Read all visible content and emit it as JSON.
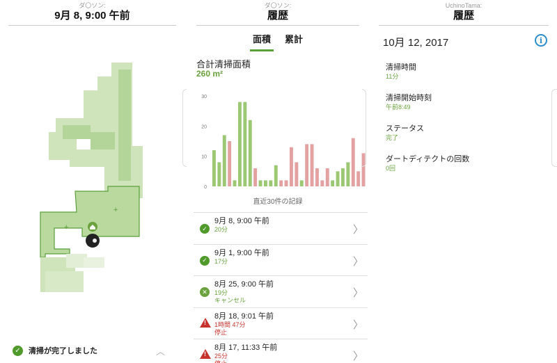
{
  "panel1": {
    "header_sub": "ダ〇ソン:",
    "header_title": "9月 8, 9:00 午前",
    "status_text": "清掃が完了しました"
  },
  "panel2": {
    "header_sub": "ダ〇ソン:",
    "header_title": "履歴",
    "tabs": [
      "面積",
      "累計"
    ],
    "total_label": "合計清掃面積",
    "total_value": "260 m²",
    "chart_caption": "直近30件の記録",
    "list": [
      {
        "title": "9月 8, 9:00 午前",
        "duration": "20分",
        "status": "",
        "icon": "check"
      },
      {
        "title": "9月 1, 9:00 午前",
        "duration": "17分",
        "status": "",
        "icon": "check"
      },
      {
        "title": "8月 25, 9:00 午前",
        "duration": "19分",
        "status": "キャンセル",
        "icon": "cancel"
      },
      {
        "title": "8月 18, 9:01 午前",
        "duration": "1時間 47分",
        "status": "停止",
        "icon": "warning"
      },
      {
        "title": "8月 17, 11:33 午前",
        "duration": "25分",
        "status": "停止",
        "icon": "warning"
      }
    ]
  },
  "panel3": {
    "header_sub": "UchinoTama:",
    "header_title": "履歴",
    "date": "10月 12, 2017",
    "details": [
      {
        "label": "清掃時間",
        "value": "11分"
      },
      {
        "label": "清掃開始時刻",
        "value": "午前8:49"
      },
      {
        "label": "ステータス",
        "value": "完了"
      },
      {
        "label": "ダートディテクトの回数",
        "value": "0回"
      }
    ]
  },
  "colors": {
    "green": "#9cc873",
    "red": "#e3a1a1",
    "accent": "#5a9f3a",
    "error": "#c8322d",
    "info": "#2a8ecf"
  },
  "chart_data": {
    "type": "bar",
    "yticks": [
      0,
      10,
      20,
      30
    ],
    "ylim": [
      0,
      30
    ],
    "values": [
      12,
      8,
      17,
      15,
      2,
      28,
      28,
      22,
      6,
      2,
      2,
      2,
      7,
      2,
      2,
      13,
      8,
      2,
      14,
      14,
      6,
      2,
      6,
      2,
      5,
      6,
      8,
      16,
      5,
      11
    ],
    "status": [
      "g",
      "g",
      "g",
      "r",
      "g",
      "g",
      "g",
      "g",
      "r",
      "g",
      "g",
      "g",
      "g",
      "r",
      "r",
      "r",
      "r",
      "g",
      "r",
      "r",
      "r",
      "r",
      "r",
      "g",
      "g",
      "g",
      "g",
      "r",
      "r",
      "r"
    ]
  }
}
